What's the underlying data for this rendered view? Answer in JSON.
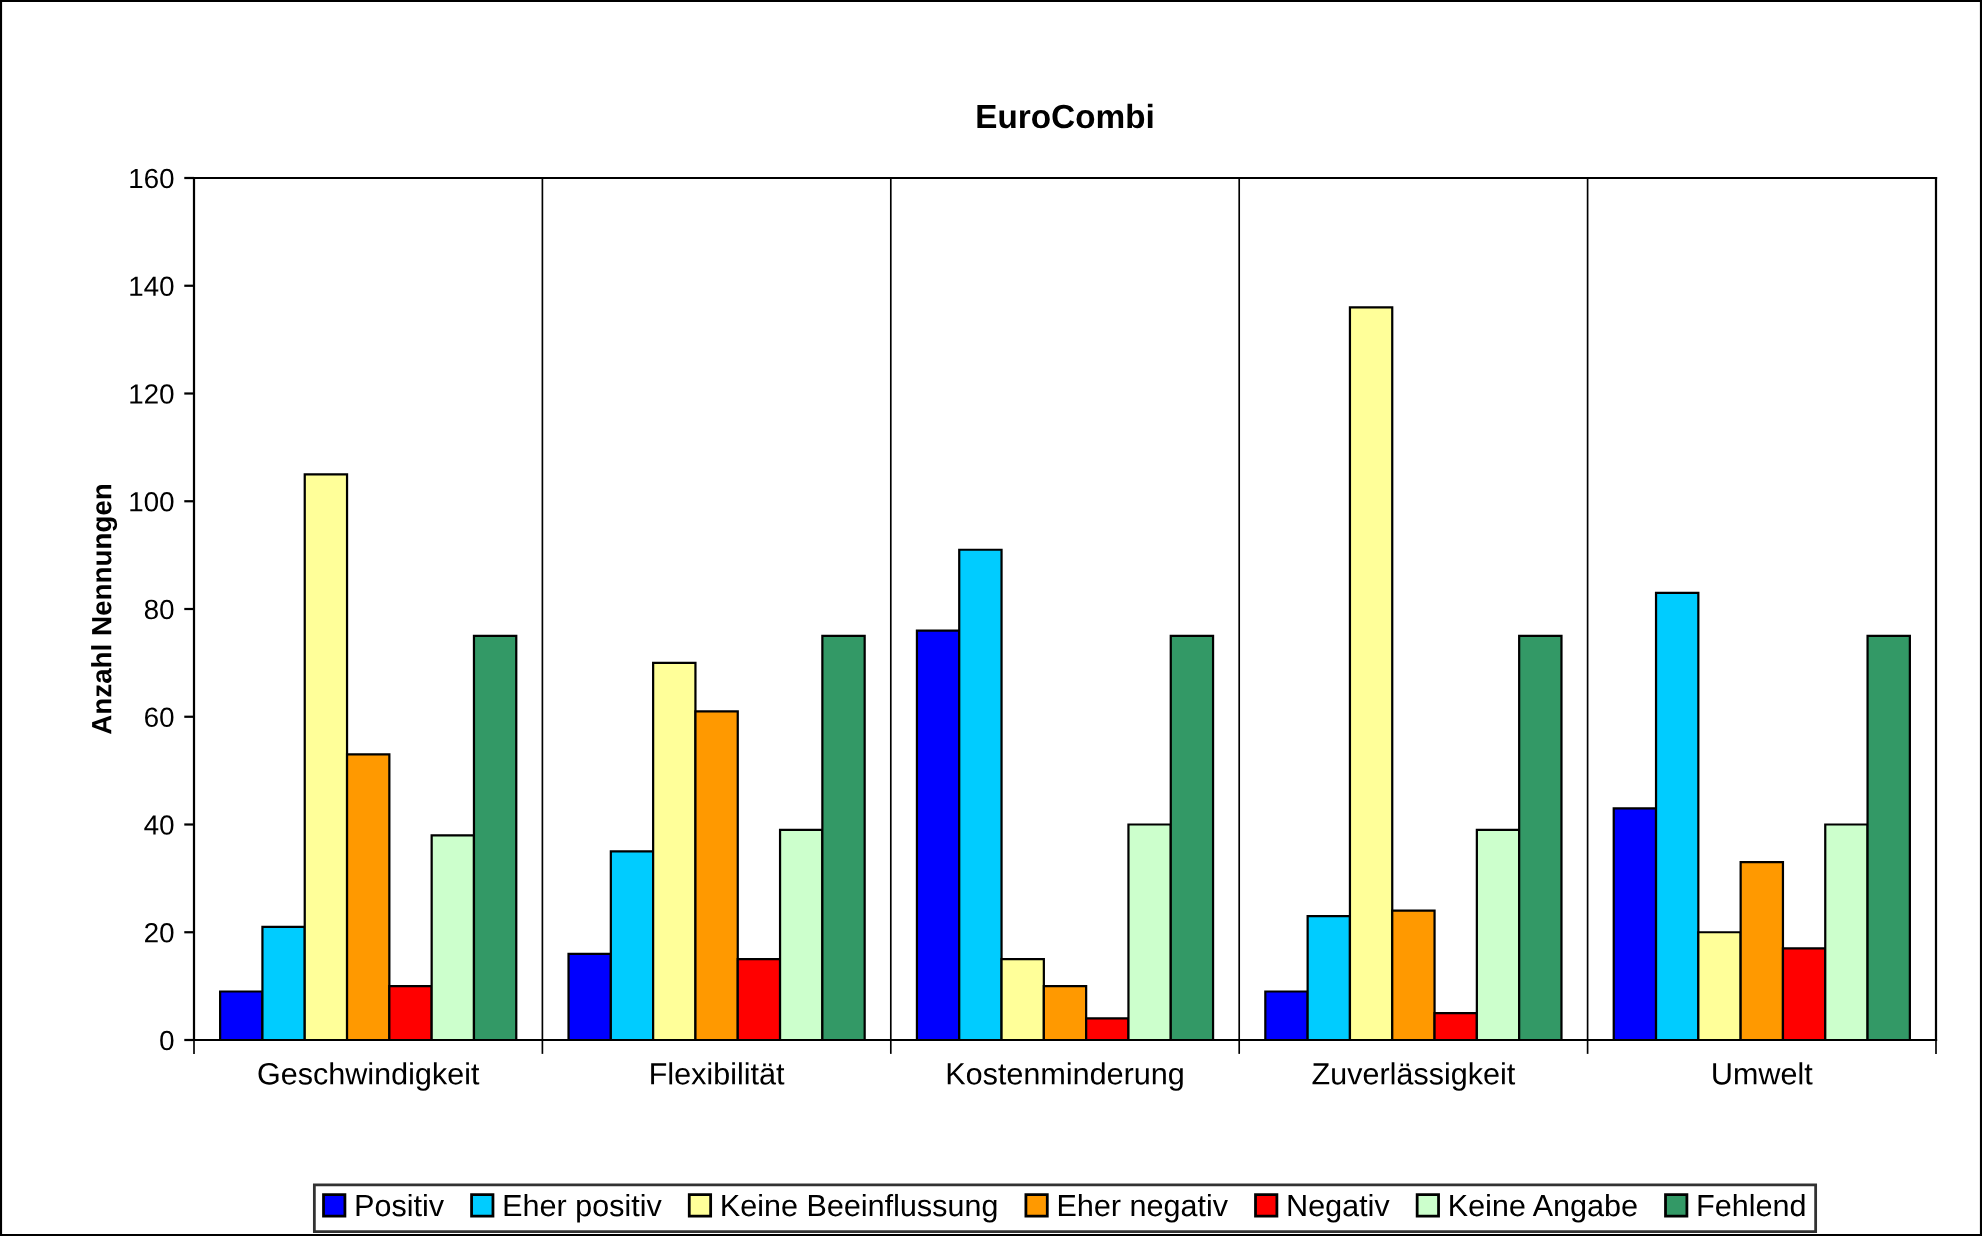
{
  "chart_data": {
    "type": "bar",
    "title": "EuroCombi",
    "ylabel": "Anzahl Nennungen",
    "categories": [
      "Geschwindigkeit",
      "Flexibilität",
      "Kostenminderung",
      "Zuverlässigkeit",
      "Umwelt"
    ],
    "series": [
      {
        "name": "Positiv",
        "color": "#0000ff",
        "values": [
          9,
          16,
          76,
          9,
          43
        ]
      },
      {
        "name": "Eher positiv",
        "color": "#00ccff",
        "values": [
          21,
          35,
          91,
          23,
          83
        ]
      },
      {
        "name": "Keine Beeinflussung",
        "color": "#ffff99",
        "values": [
          105,
          70,
          15,
          136,
          20
        ]
      },
      {
        "name": "Eher negativ",
        "color": "#ff9900",
        "values": [
          53,
          61,
          10,
          24,
          33
        ]
      },
      {
        "name": "Negativ",
        "color": "#ff0000",
        "values": [
          10,
          15,
          4,
          5,
          17
        ]
      },
      {
        "name": "Keine Angabe",
        "color": "#ccffcc",
        "values": [
          38,
          39,
          40,
          39,
          40
        ]
      },
      {
        "name": "Fehlend",
        "color": "#339966",
        "values": [
          75,
          75,
          75,
          75,
          75
        ]
      }
    ],
    "ylim": [
      0,
      160
    ],
    "yticks": [
      0,
      20,
      40,
      60,
      80,
      100,
      120,
      140,
      160
    ],
    "grid": "x",
    "legend": "bottom"
  }
}
